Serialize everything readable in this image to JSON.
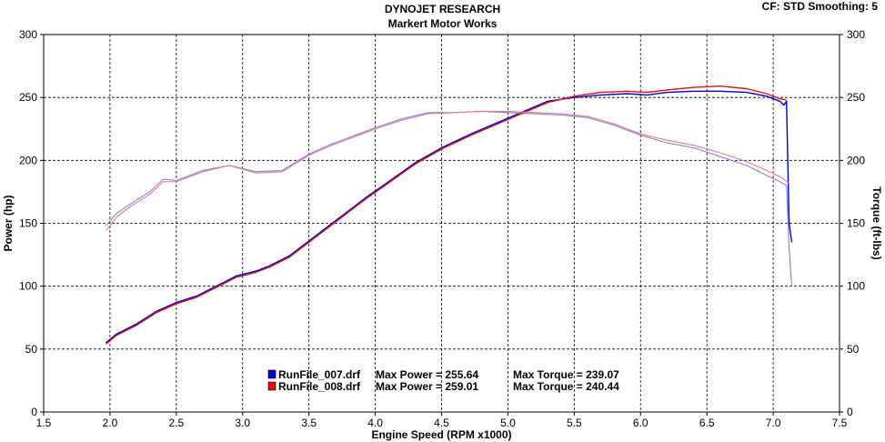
{
  "header": {
    "title": "DYNOJET RESEARCH",
    "subtitle": "Markert Motor Works",
    "cf_label": "CF: STD  Smoothing: 5"
  },
  "chart_data": {
    "type": "line",
    "title": "DYNOJET RESEARCH",
    "subtitle": "Markert Motor Works",
    "xlabel": "Engine Speed (RPM x1000)",
    "ylabel_left": "Power (hp)",
    "ylabel_right": "Torque (ft-lbs)",
    "xlim": [
      1.5,
      7.5
    ],
    "ylim": [
      0,
      300
    ],
    "xticks": [
      "1.5",
      "2.0",
      "2.5",
      "3.0",
      "3.5",
      "4.0",
      "4.5",
      "5.0",
      "5.5",
      "6.0",
      "6.5",
      "7.0",
      "7.5"
    ],
    "yticks_left": [
      "0",
      "50",
      "100",
      "150",
      "200",
      "250",
      "300"
    ],
    "yticks_right": [
      "0",
      "50",
      "100",
      "150",
      "200",
      "250",
      "300"
    ],
    "grid": true,
    "legend_placement": "bottom-center",
    "legend": [
      {
        "file": "RunFile_007.drf",
        "power_label": "Max Power = 255.64",
        "torque_label": "Max Torque = 239.07",
        "color": "#0000cc"
      },
      {
        "file": "RunFile_008.drf",
        "power_label": "Max Power = 259.01",
        "torque_label": "Max Torque = 240.44",
        "color": "#dd1111"
      }
    ],
    "series": [
      {
        "name": "RunFile_007.drf",
        "kind": "power",
        "color": "#0000cc",
        "x": [
          1.97,
          2.05,
          2.2,
          2.35,
          2.5,
          2.65,
          2.8,
          2.95,
          3.1,
          3.2,
          3.35,
          3.5,
          3.65,
          3.8,
          3.95,
          4.1,
          4.3,
          4.5,
          4.7,
          4.9,
          5.1,
          5.3,
          5.5,
          5.7,
          5.9,
          6.05,
          6.2,
          6.4,
          6.6,
          6.8,
          6.95,
          7.05,
          7.08,
          7.1,
          7.12,
          7.14
        ],
        "y": [
          55,
          62,
          70,
          80,
          87,
          92,
          100,
          108,
          112,
          116,
          124,
          136,
          148,
          160,
          172,
          183,
          198,
          210,
          220,
          229,
          238,
          247,
          250,
          252,
          253,
          252,
          254,
          255,
          255,
          254,
          251,
          247,
          244,
          247,
          150,
          135
        ]
      },
      {
        "name": "RunFile_007.drf",
        "kind": "torque",
        "color": "#8080e8",
        "x": [
          1.97,
          2.05,
          2.15,
          2.3,
          2.4,
          2.5,
          2.7,
          2.9,
          3.1,
          3.3,
          3.5,
          3.65,
          3.8,
          4.0,
          4.2,
          4.4,
          4.6,
          4.8,
          5.0,
          5.2,
          5.4,
          5.6,
          5.8,
          6.0,
          6.2,
          6.4,
          6.6,
          6.8,
          6.95,
          7.05,
          7.1,
          7.12,
          7.14
        ],
        "y": [
          148,
          158,
          165,
          175,
          185,
          184,
          192,
          196,
          191,
          192,
          205,
          212,
          218,
          226,
          233,
          238,
          238,
          239,
          238,
          237,
          236,
          234,
          228,
          220,
          214,
          210,
          203,
          196,
          188,
          183,
          180,
          130,
          100
        ]
      },
      {
        "name": "RunFile_008.drf",
        "kind": "power",
        "color": "#dd1111",
        "x": [
          1.97,
          2.05,
          2.2,
          2.35,
          2.5,
          2.65,
          2.8,
          2.95,
          3.1,
          3.2,
          3.35,
          3.5,
          3.65,
          3.8,
          3.95,
          4.1,
          4.3,
          4.5,
          4.7,
          4.9,
          5.1,
          5.3,
          5.5,
          5.7,
          5.9,
          6.05,
          6.2,
          6.4,
          6.6,
          6.8,
          6.95,
          7.05,
          7.1
        ],
        "y": [
          54,
          61,
          69,
          79,
          86,
          91,
          99,
          107,
          111,
          115,
          123,
          135,
          147,
          159,
          171,
          182,
          197,
          209,
          219,
          228,
          237,
          246,
          251,
          254,
          255,
          254,
          256,
          258,
          259,
          257,
          253,
          249,
          248
        ]
      },
      {
        "name": "RunFile_008.drf",
        "kind": "torque",
        "color": "#e88080",
        "x": [
          1.97,
          2.05,
          2.15,
          2.3,
          2.4,
          2.5,
          2.7,
          2.9,
          3.1,
          3.3,
          3.5,
          3.65,
          3.8,
          4.0,
          4.2,
          4.4,
          4.6,
          4.8,
          5.0,
          5.2,
          5.4,
          5.6,
          5.8,
          6.0,
          6.2,
          6.4,
          6.6,
          6.8,
          6.95,
          7.05,
          7.12
        ],
        "y": [
          144,
          155,
          163,
          173,
          183,
          183,
          191,
          196,
          190,
          191,
          204,
          211,
          217,
          225,
          232,
          237,
          238,
          239,
          239,
          238,
          237,
          235,
          229,
          221,
          216,
          212,
          206,
          199,
          192,
          187,
          182
        ]
      }
    ]
  }
}
